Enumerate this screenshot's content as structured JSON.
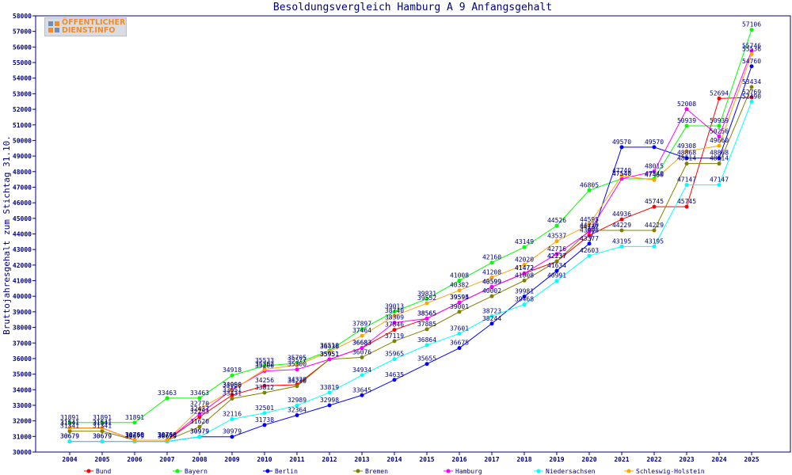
{
  "logo": {
    "line1": "ÖFFENTLICHER",
    "line2": "DIENST.INFO"
  },
  "chart_data": {
    "type": "line",
    "title": "Besoldungsvergleich Hamburg A 9 Anfangsgehalt",
    "xlabel": "",
    "ylabel": "Bruttojahresgehalt zum Stichtag 31.10.",
    "ylim": [
      30000,
      58000
    ],
    "ytick_step": 1000,
    "grid": false,
    "legend_position": "bottom",
    "x": [
      2004,
      2005,
      2006,
      2007,
      2008,
      2009,
      2010,
      2011,
      2012,
      2013,
      2014,
      2015,
      2016,
      2017,
      2018,
      2019,
      2020,
      2021,
      2022,
      2023,
      2024,
      2025
    ],
    "series": [
      {
        "name": "Bund",
        "color": "#ff0000",
        "values": [
          31541,
          31541,
          30760,
          30760,
          32253,
          33651,
          34256,
          34320,
          35951,
          36683,
          37846,
          38565,
          39594,
          40599,
          41472,
          42237,
          43908,
          44936,
          45745,
          45745,
          52694,
          52769
        ]
      },
      {
        "name": "Bayern",
        "color": "#00ff00",
        "values": [
          31891,
          31891,
          31891,
          33463,
          33463,
          34918,
          35533,
          35705,
          36510,
          37897,
          39013,
          39831,
          41008,
          42160,
          43149,
          44526,
          46805,
          47540,
          47540,
          50939,
          50939,
          57106
        ]
      },
      {
        "name": "Berlin",
        "color": "#0000ff",
        "values": [
          30679,
          30679,
          30679,
          30679,
          30979,
          30979,
          31738,
          32364,
          32998,
          33645,
          34635,
          35655,
          36675,
          38244,
          39981,
          41634,
          43377,
          49570,
          49570,
          48868,
          48868,
          54760
        ]
      },
      {
        "name": "Bremen",
        "color": "#808000",
        "values": [
          31341,
          31341,
          30760,
          30760,
          31620,
          33431,
          33812,
          34230,
          35951,
          36076,
          37119,
          37885,
          39001,
          40002,
          41008,
          42237,
          44229,
          44229,
          44229,
          48514,
          48514,
          53434
        ]
      },
      {
        "name": "Hamburg",
        "color": "#ff00ff",
        "values": [
          31541,
          31541,
          30760,
          30760,
          32437,
          34000,
          35200,
          35300,
          35951,
          36683,
          38309,
          38565,
          39595,
          40599,
          41472,
          42716,
          44137,
          47540,
          48015,
          52008,
          50256,
          55746
        ]
      },
      {
        "name": "Niedersachsen",
        "color": "#00ffff",
        "values": [
          30679,
          30679,
          30679,
          30679,
          30979,
          32116,
          32501,
          32989,
          33819,
          34934,
          35965,
          36864,
          37601,
          38723,
          39468,
          40991,
          42603,
          43195,
          43195,
          47147,
          47147,
          52490
        ]
      },
      {
        "name": "Schleswig-Holstein",
        "color": "#ffa500",
        "values": [
          31541,
          31541,
          30760,
          30760,
          32770,
          33956,
          35302,
          35577,
          36436,
          37464,
          38740,
          39552,
          40382,
          41208,
          42020,
          43537,
          44595,
          47740,
          47460,
          49308,
          49660,
          55536
        ]
      }
    ]
  }
}
